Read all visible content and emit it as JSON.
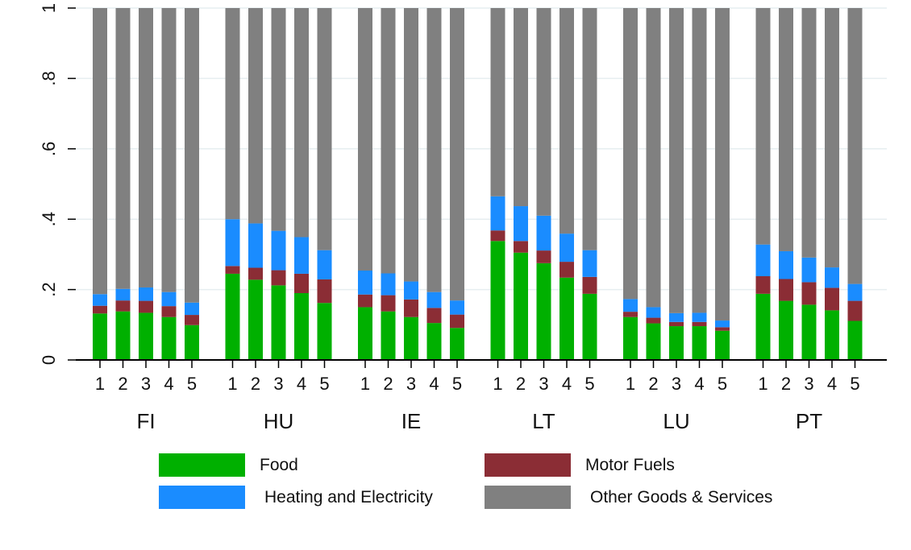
{
  "chart_data": {
    "type": "bar",
    "stacked": true,
    "title": "",
    "xlabel": "",
    "ylabel": "",
    "ylim": [
      0,
      1
    ],
    "yticks": [
      0,
      0.2,
      0.4,
      0.6,
      0.8,
      1
    ],
    "ytick_labels": [
      "0",
      ".2",
      ".4",
      ".6",
      ".8",
      "1"
    ],
    "groups": [
      "FI",
      "HU",
      "IE",
      "LT",
      "LU",
      "PT"
    ],
    "categories": [
      "1",
      "2",
      "3",
      "4",
      "5"
    ],
    "grid": true,
    "legend_position": "bottom",
    "series": [
      {
        "name": "Food",
        "color": "#00b000",
        "values": [
          [
            0.132,
            0.138,
            0.134,
            0.122,
            0.099
          ],
          [
            0.245,
            0.228,
            0.212,
            0.19,
            0.162
          ],
          [
            0.15,
            0.138,
            0.122,
            0.105,
            0.091
          ],
          [
            0.338,
            0.305,
            0.275,
            0.234,
            0.188
          ],
          [
            0.122,
            0.104,
            0.096,
            0.096,
            0.083
          ],
          [
            0.188,
            0.168,
            0.157,
            0.141,
            0.111
          ]
        ]
      },
      {
        "name": "Motor Fuels",
        "color": "#8b2d35",
        "values": [
          [
            0.022,
            0.031,
            0.034,
            0.031,
            0.029
          ],
          [
            0.022,
            0.034,
            0.043,
            0.055,
            0.067
          ],
          [
            0.036,
            0.046,
            0.05,
            0.043,
            0.038
          ],
          [
            0.03,
            0.033,
            0.036,
            0.045,
            0.048
          ],
          [
            0.015,
            0.016,
            0.012,
            0.012,
            0.01
          ],
          [
            0.05,
            0.062,
            0.064,
            0.064,
            0.057
          ]
        ]
      },
      {
        "name": "Heating and Electricity",
        "color": "#1a8cff",
        "values": [
          [
            0.033,
            0.033,
            0.038,
            0.04,
            0.035
          ],
          [
            0.133,
            0.126,
            0.112,
            0.104,
            0.083
          ],
          [
            0.068,
            0.062,
            0.051,
            0.045,
            0.04
          ],
          [
            0.097,
            0.099,
            0.099,
            0.08,
            0.076
          ],
          [
            0.036,
            0.03,
            0.025,
            0.026,
            0.019
          ],
          [
            0.09,
            0.079,
            0.07,
            0.058,
            0.048
          ]
        ]
      },
      {
        "name": "Other Goods & Services",
        "color": "#808080",
        "values": [
          [
            0.813,
            0.798,
            0.794,
            0.807,
            0.837
          ],
          [
            0.6,
            0.612,
            0.633,
            0.651,
            0.688
          ],
          [
            0.746,
            0.754,
            0.777,
            0.807,
            0.831
          ],
          [
            0.535,
            0.563,
            0.59,
            0.641,
            0.688
          ],
          [
            0.827,
            0.85,
            0.867,
            0.866,
            0.888
          ],
          [
            0.672,
            0.691,
            0.709,
            0.737,
            0.784
          ]
        ]
      }
    ]
  },
  "legend": {
    "items": [
      {
        "label": "Food",
        "color": "#00b000"
      },
      {
        "label": "Motor Fuels",
        "color": "#8b2d35"
      },
      {
        "label": "Heating and Electricity",
        "color": "#1a8cff"
      },
      {
        "label": "Other Goods & Services",
        "color": "#808080"
      }
    ]
  }
}
